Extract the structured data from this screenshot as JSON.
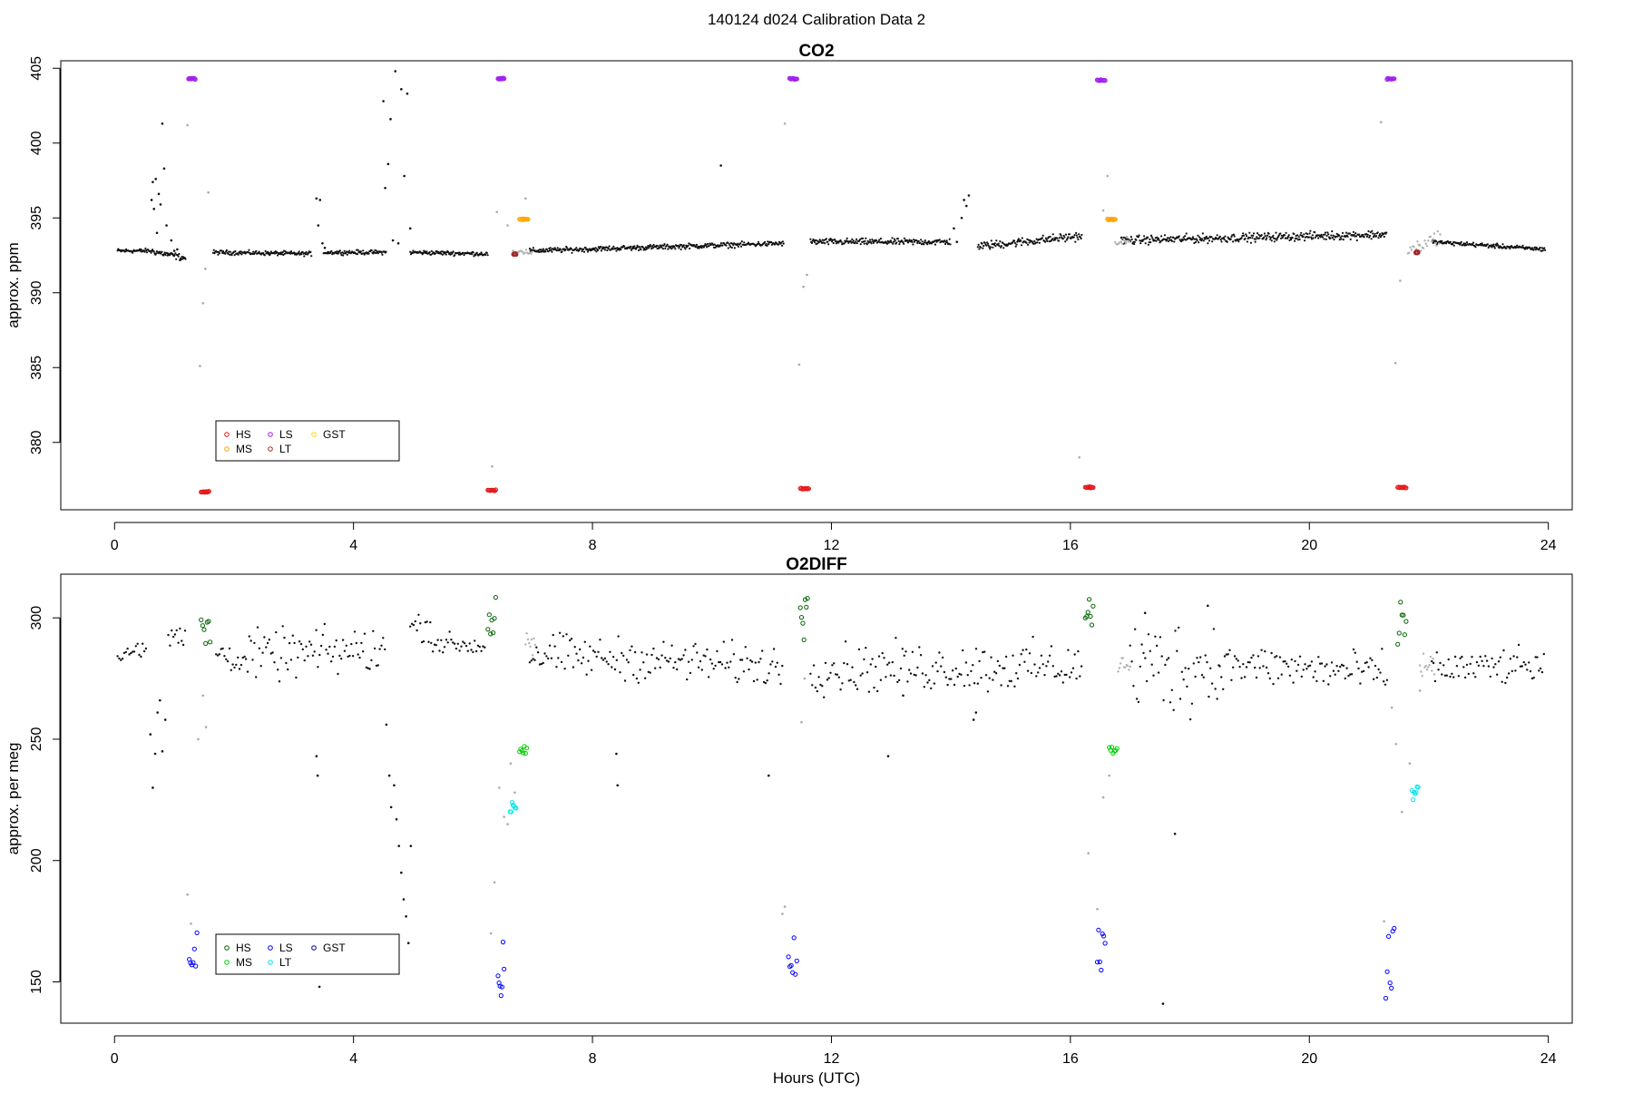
{
  "page_title": "140124   d024   Calibration Data 2",
  "chart_data": [
    {
      "type": "scatter",
      "title": "CO2",
      "xlabel": "",
      "ylabel": "approx. ppm",
      "xlim": [
        -0.9,
        24.4
      ],
      "ylim": [
        375.5,
        405.5
      ],
      "xticks": [
        0,
        4,
        8,
        12,
        16,
        20,
        24
      ],
      "yticks": [
        380,
        385,
        390,
        395,
        400,
        405
      ],
      "grid": false,
      "legend_position": "bottom-left",
      "legend": [
        {
          "label": "HS",
          "color": "#e41a1c"
        },
        {
          "label": "MS",
          "color": "#ffa500"
        },
        {
          "label": "LS",
          "color": "#a020f0"
        },
        {
          "label": "LT",
          "color": "#a52a2a"
        },
        {
          "label": "GST",
          "color": "#ffd700"
        }
      ],
      "ambient_segments": [
        {
          "x": [
            0.05,
            0.6
          ],
          "y": [
            392.8,
            392.8
          ],
          "noise": 0.1
        },
        {
          "x": [
            0.6,
            1.2
          ],
          "y": [
            392.8,
            392.3
          ],
          "noise": 0.15
        },
        {
          "x": [
            1.65,
            3.3
          ],
          "y": [
            392.7,
            392.6
          ],
          "noise": 0.1
        },
        {
          "x": [
            3.5,
            4.55
          ],
          "y": [
            392.7,
            392.7
          ],
          "noise": 0.1
        },
        {
          "x": [
            4.95,
            6.25
          ],
          "y": [
            392.7,
            392.6
          ],
          "noise": 0.1
        },
        {
          "x": [
            6.95,
            11.2
          ],
          "y": [
            392.8,
            393.3
          ],
          "noise": 0.12
        },
        {
          "x": [
            11.65,
            14.0
          ],
          "y": [
            393.4,
            393.4
          ],
          "noise": 0.15
        },
        {
          "x": [
            14.45,
            16.2
          ],
          "y": [
            393.1,
            393.8
          ],
          "noise": 0.2
        },
        {
          "x": [
            16.85,
            21.3
          ],
          "y": [
            393.5,
            393.9
          ],
          "noise": 0.2
        },
        {
          "x": [
            22.05,
            23.95
          ],
          "y": [
            393.4,
            392.9
          ],
          "noise": 0.1
        }
      ],
      "spike_points": {
        "x": [
          0.62,
          0.64,
          0.66,
          0.69,
          0.71,
          0.74,
          0.77,
          0.8,
          0.83,
          0.87,
          0.9,
          0.95,
          1.0,
          1.05,
          1.1,
          3.38,
          3.41,
          3.44,
          3.48,
          3.52,
          4.5,
          4.53,
          4.58,
          4.62,
          4.66,
          4.7,
          4.75,
          4.8,
          4.85,
          4.9,
          4.95,
          10.15,
          14.05,
          14.1,
          14.18,
          14.22,
          14.26,
          14.3
        ],
        "y": [
          396.2,
          397.4,
          395.6,
          397.6,
          394.0,
          396.6,
          395.9,
          401.3,
          398.3,
          394.5,
          392.6,
          393.5,
          392.8,
          392.9,
          392.2,
          396.3,
          394.5,
          396.2,
          393.3,
          393.0,
          402.8,
          397.0,
          398.6,
          401.6,
          393.5,
          404.8,
          393.3,
          403.6,
          397.8,
          403.3,
          394.3,
          398.5,
          394.3,
          393.4,
          395.0,
          396.2,
          395.8,
          396.5
        ]
      },
      "transition_points": {
        "x": [
          1.22,
          1.43,
          1.48,
          1.52,
          1.57,
          6.32,
          6.4,
          6.58,
          6.67,
          6.74,
          6.88,
          11.22,
          11.46,
          11.53,
          11.59,
          16.15,
          16.55,
          16.62,
          16.93,
          21.2,
          21.44,
          21.52,
          21.84
        ],
        "y": [
          401.2,
          385.1,
          389.3,
          391.6,
          396.7,
          378.4,
          395.4,
          394.5,
          392.8,
          392.5,
          396.3,
          401.3,
          385.2,
          390.4,
          391.2,
          379.0,
          395.5,
          397.8,
          393.4,
          401.4,
          385.3,
          390.8,
          393.2
        ]
      },
      "transition_segments": [
        {
          "x": [
            6.75,
            7.0
          ],
          "y": [
            392.8,
            392.6
          ],
          "noise": 0.15
        },
        {
          "x": [
            16.75,
            17.0
          ],
          "y": [
            393.3,
            393.5
          ],
          "noise": 0.15
        },
        {
          "x": [
            21.65,
            22.2
          ],
          "y": [
            392.8,
            393.8
          ],
          "noise": 0.3
        }
      ],
      "cal_groups": [
        {
          "series": "LS",
          "x": [
            1.24,
            1.35
          ],
          "y": 404.3
        },
        {
          "series": "HS",
          "x": [
            1.45,
            1.58
          ],
          "y": 376.7
        },
        {
          "series": "HS",
          "x": [
            6.25,
            6.38
          ],
          "y": 376.8
        },
        {
          "series": "LS",
          "x": [
            6.42,
            6.52
          ],
          "y": 404.3
        },
        {
          "series": "MS",
          "x": [
            6.78,
            6.92
          ],
          "y": 394.9
        },
        {
          "series": "LT",
          "x": [
            6.68,
            6.72
          ],
          "y": 392.6
        },
        {
          "series": "LS",
          "x": [
            11.3,
            11.42
          ],
          "y": 404.3
        },
        {
          "series": "HS",
          "x": [
            11.48,
            11.62
          ],
          "y": 376.9
        },
        {
          "series": "HS",
          "x": [
            16.25,
            16.38
          ],
          "y": 377.0
        },
        {
          "series": "LS",
          "x": [
            16.45,
            16.58
          ],
          "y": 404.2
        },
        {
          "series": "MS",
          "x": [
            16.62,
            16.75
          ],
          "y": 394.9
        },
        {
          "series": "LS",
          "x": [
            21.3,
            21.42
          ],
          "y": 404.3
        },
        {
          "series": "HS",
          "x": [
            21.48,
            21.62
          ],
          "y": 377.0
        },
        {
          "series": "LT",
          "x": [
            21.78,
            21.82
          ],
          "y": 392.7
        }
      ]
    },
    {
      "type": "scatter",
      "title": "O2DIFF",
      "xlabel": "Hours (UTC)",
      "ylabel": "approx. per meg",
      "xlim": [
        -0.9,
        24.4
      ],
      "ylim": [
        133,
        318
      ],
      "xticks": [
        0,
        4,
        8,
        12,
        16,
        20,
        24
      ],
      "yticks": [
        150,
        200,
        250,
        300
      ],
      "grid": false,
      "legend_position": "bottom-left",
      "legend": [
        {
          "label": "HS",
          "color": "#006400"
        },
        {
          "label": "MS",
          "color": "#00cd00"
        },
        {
          "label": "LS",
          "color": "#0000ff"
        },
        {
          "label": "LT",
          "color": "#00e5ee"
        },
        {
          "label": "GST",
          "color": "#00008b"
        }
      ],
      "ambient_segments": [
        {
          "x": [
            0.05,
            0.55
          ],
          "y": [
            286,
            286
          ],
          "noise": 3
        },
        {
          "x": [
            0.9,
            1.2
          ],
          "y": [
            292,
            292
          ],
          "noise": 5
        },
        {
          "x": [
            1.7,
            2.2
          ],
          "y": [
            286,
            282
          ],
          "noise": 4
        },
        {
          "x": [
            2.2,
            4.55
          ],
          "y": [
            284,
            287
          ],
          "noise": 7
        },
        {
          "x": [
            4.95,
            5.3
          ],
          "y": [
            297,
            296
          ],
          "noise": 4
        },
        {
          "x": [
            5.3,
            6.2
          ],
          "y": [
            290,
            288
          ],
          "noise": 3
        },
        {
          "x": [
            6.95,
            11.2
          ],
          "y": [
            285,
            280
          ],
          "noise": 6
        },
        {
          "x": [
            11.65,
            16.2
          ],
          "y": [
            279,
            280
          ],
          "noise": 7
        },
        {
          "x": [
            17.0,
            18.5
          ],
          "y": [
            280,
            280
          ],
          "noise": 14
        },
        {
          "x": [
            18.5,
            21.3
          ],
          "y": [
            281,
            277
          ],
          "noise": 6
        },
        {
          "x": [
            22.05,
            23.95
          ],
          "y": [
            279,
            280
          ],
          "noise": 5
        }
      ],
      "spike_points": {
        "x": [
          0.6,
          0.64,
          0.68,
          0.72,
          0.76,
          0.8,
          0.85,
          4.55,
          4.6,
          4.63,
          4.68,
          4.72,
          4.76,
          4.8,
          4.84,
          4.88,
          4.92,
          4.96,
          3.38,
          3.4,
          3.43,
          17.25,
          17.55,
          17.75,
          18.3,
          8.4,
          8.42,
          10.95,
          12.95,
          14.38,
          14.42,
          13.2
        ],
        "y": [
          252,
          230,
          244,
          261,
          266,
          245,
          258,
          256,
          235,
          222,
          231,
          217,
          206,
          195,
          184,
          177,
          166,
          206,
          243,
          235,
          148,
          302,
          141,
          211,
          305,
          244,
          231,
          235,
          243,
          258,
          261,
          268
        ]
      },
      "transition_points": {
        "x": [
          1.22,
          1.28,
          1.4,
          1.48,
          1.53,
          6.3,
          6.36,
          6.44,
          6.52,
          6.58,
          6.63,
          6.7,
          11.18,
          11.22,
          11.5,
          11.55,
          16.3,
          16.45,
          16.55,
          16.65,
          21.25,
          21.38,
          21.45,
          21.55,
          21.68,
          21.85
        ],
        "y": [
          186,
          174,
          250,
          268,
          255,
          170,
          191,
          230,
          218,
          215,
          240,
          228,
          178,
          181,
          257,
          275,
          203,
          180,
          226,
          235,
          175,
          263,
          248,
          220,
          240,
          270
        ]
      },
      "transition_segments": [
        {
          "x": [
            6.88,
            7.05
          ],
          "y": [
            290,
            286
          ],
          "noise": 3
        },
        {
          "x": [
            16.8,
            17.0
          ],
          "y": [
            281,
            279
          ],
          "noise": 3
        },
        {
          "x": [
            21.85,
            22.1
          ],
          "y": [
            281,
            279
          ],
          "noise": 3
        }
      ],
      "cal_groups": [
        {
          "series": "LS",
          "x": [
            1.25,
            1.38
          ],
          "y": [
            156,
            171
          ]
        },
        {
          "series": "HS",
          "x": [
            1.45,
            1.6
          ],
          "y": [
            289,
            302
          ]
        },
        {
          "series": "HS",
          "x": [
            6.25,
            6.38
          ],
          "y": [
            290,
            309
          ]
        },
        {
          "series": "LS",
          "x": [
            6.42,
            6.52
          ],
          "y": [
            139,
            167
          ]
        },
        {
          "series": "LT",
          "x": [
            6.62,
            6.72
          ],
          "y": [
            220,
            224
          ]
        },
        {
          "series": "MS",
          "x": [
            6.78,
            6.9
          ],
          "y": [
            244,
            248
          ]
        },
        {
          "series": "LS",
          "x": [
            11.28,
            11.42
          ],
          "y": [
            153,
            173
          ]
        },
        {
          "series": "HS",
          "x": [
            11.48,
            11.6
          ],
          "y": [
            289,
            309
          ]
        },
        {
          "series": "HS",
          "x": [
            16.25,
            16.38
          ],
          "y": [
            297,
            310
          ]
        },
        {
          "series": "LS",
          "x": [
            16.45,
            16.58
          ],
          "y": [
            154,
            175
          ]
        },
        {
          "series": "MS",
          "x": [
            16.65,
            16.78
          ],
          "y": [
            244,
            247
          ]
        },
        {
          "series": "LS",
          "x": [
            21.28,
            21.42
          ],
          "y": [
            143,
            173
          ]
        },
        {
          "series": "HS",
          "x": [
            21.48,
            21.62
          ],
          "y": [
            287,
            312
          ]
        },
        {
          "series": "LT",
          "x": [
            21.72,
            21.82
          ],
          "y": [
            225,
            231
          ]
        }
      ]
    }
  ]
}
